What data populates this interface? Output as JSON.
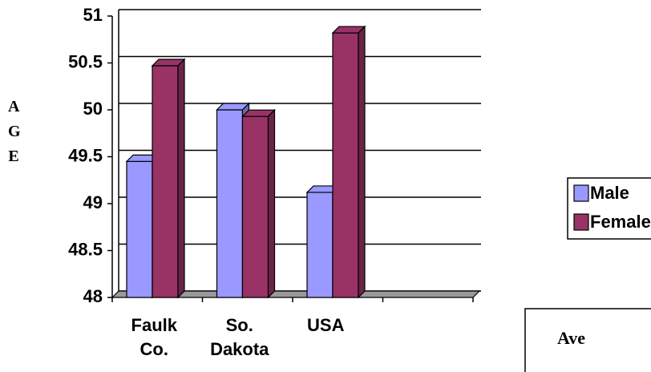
{
  "chart_data": {
    "type": "bar3d",
    "y_label": "AGE",
    "caption": "Ave",
    "categories": [
      "Faulk Co.",
      "So. Dakota",
      "USA",
      null
    ],
    "series": [
      {
        "name": "Male",
        "color": "#9999ff",
        "side": "#6b6bb3",
        "values": [
          49.45,
          50.0,
          49.12,
          null
        ]
      },
      {
        "name": "Female",
        "color": "#993366",
        "side": "#6b2447",
        "values": [
          50.47,
          49.93,
          50.82,
          null
        ]
      }
    ],
    "ylim": [
      48,
      51
    ],
    "yticks": [
      48,
      48.5,
      49,
      49.5,
      50,
      50.5,
      51
    ],
    "grid": true,
    "legend": "right"
  }
}
